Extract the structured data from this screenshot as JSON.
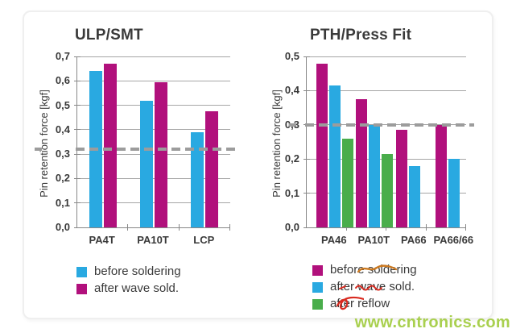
{
  "page": {
    "watermark": "www.cntronics.com"
  },
  "colors": {
    "blue": "#29a9e1",
    "magenta": "#b1107c",
    "green": "#49ad4b",
    "grid": "#a6a6a6",
    "axis": "#888888",
    "text": "#3a3a3a",
    "threshold_gray": "#9c9c9c",
    "scribble_orange": "#cc7a22",
    "scribble_red": "#d92b21",
    "watermark_green": "#a0cb3c"
  },
  "chart_data": [
    {
      "type": "bar",
      "title": "ULP/SMT",
      "ylabel": "Pin retention force [kgf]",
      "xlabel": "",
      "categories": [
        "PA4T",
        "PA10T",
        "LCP"
      ],
      "series": [
        {
          "name": "before soldering",
          "color_key": "blue",
          "values": [
            0.64,
            0.52,
            0.39
          ]
        },
        {
          "name": "after wave sold.",
          "color_key": "magenta",
          "values": [
            0.67,
            0.595,
            0.475
          ]
        }
      ],
      "ylim": [
        0,
        0.7
      ],
      "yticks_labels": [
        "0,0",
        "0,1",
        "0,2",
        "0,3",
        "0,4",
        "0,5",
        "0,6",
        "0,7"
      ],
      "threshold": 0.32,
      "threshold_style": "thick gray dashed line",
      "grid": true,
      "legend_position": "bottom-left"
    },
    {
      "type": "bar",
      "title": "PTH/Press Fit",
      "ylabel": "Pin retention force [kgf]",
      "xlabel": "",
      "categories": [
        "PA46",
        "PA10T",
        "PA66",
        "PA66/66"
      ],
      "series": [
        {
          "name": "before soldering",
          "color_key": "magenta",
          "values": [
            0.48,
            0.375,
            0.285,
            0.3
          ]
        },
        {
          "name": "after wave sold.",
          "color_key": "blue",
          "values": [
            0.415,
            0.3,
            0.18,
            0.2
          ]
        },
        {
          "name": "after reflow",
          "color_key": "green",
          "values": [
            0.26,
            0.215,
            null,
            null
          ]
        }
      ],
      "ylim": [
        0,
        0.5
      ],
      "yticks_labels": [
        "0,0",
        "0,1",
        "0,2",
        "0,3",
        "0,4",
        "0,5"
      ],
      "threshold": 0.3,
      "threshold_style": "thick gray dashed line",
      "grid": true,
      "legend_position": "bottom-left"
    }
  ]
}
